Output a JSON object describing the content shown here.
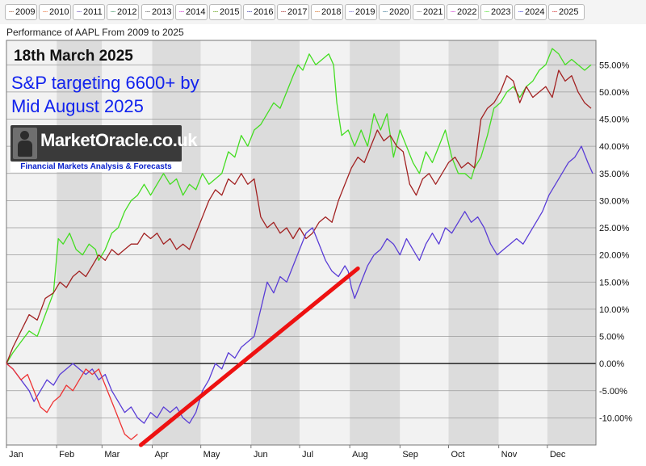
{
  "legend": [
    {
      "label": "2009",
      "color": "#a0522d"
    },
    {
      "label": "2010",
      "color": "#e87038"
    },
    {
      "label": "2011",
      "color": "#5a3db0"
    },
    {
      "label": "2012",
      "color": "#2e8b57"
    },
    {
      "label": "2013",
      "color": "#555555"
    },
    {
      "label": "2014",
      "color": "#cc22cc"
    },
    {
      "label": "2015",
      "color": "#559900"
    },
    {
      "label": "2016",
      "color": "#22229a"
    },
    {
      "label": "2017",
      "color": "#a22222"
    },
    {
      "label": "2018",
      "color": "#d2691e"
    },
    {
      "label": "2019",
      "color": "#6a5acd"
    },
    {
      "label": "2020",
      "color": "#2f6f8f"
    },
    {
      "label": "2021",
      "color": "#666666"
    },
    {
      "label": "2022",
      "color": "#cc33cc"
    },
    {
      "label": "2023",
      "color": "#44dd22"
    },
    {
      "label": "2024",
      "color": "#2a2ad0"
    },
    {
      "label": "2025",
      "color": "#cc2222"
    }
  ],
  "annotations": {
    "date": "18th March 2025",
    "target_line1": "S&P targeting 6600+ by",
    "target_line2": "Mid August 2025"
  },
  "logo": {
    "brand": "MarketOracle.co.uk",
    "tagline": "Financial Markets Analysis & Forecasts"
  },
  "chart_data": {
    "type": "line",
    "title": "Performance of AAPL From 2009 to 2025",
    "xlabel": "",
    "ylabel": "",
    "x_unit": "day of year",
    "x_range": [
      1,
      365
    ],
    "months": [
      "Jan",
      "Feb",
      "Mar",
      "Apr",
      "May",
      "Jun",
      "Jul",
      "Aug",
      "Sep",
      "Oct",
      "Nov",
      "Dec"
    ],
    "y_ticks": [
      "55.00%",
      "50.00%",
      "45.00%",
      "40.00%",
      "35.00%",
      "30.00%",
      "25.00%",
      "20.00%",
      "15.00%",
      "10.00%",
      "5.00%",
      "0.00%",
      "-5.00%",
      "-10.00%"
    ],
    "y_tick_values": [
      55,
      50,
      45,
      40,
      35,
      30,
      25,
      20,
      15,
      10,
      5,
      0,
      -5,
      -10
    ],
    "ylim": [
      -15,
      59.5
    ],
    "grid": "alternating month bands with horizontal gridlines",
    "series": [
      {
        "name": "2023",
        "color": "#44dd22",
        "points": [
          [
            1,
            0
          ],
          [
            5,
            2
          ],
          [
            10,
            4
          ],
          [
            15,
            6
          ],
          [
            20,
            5
          ],
          [
            25,
            9
          ],
          [
            30,
            13
          ],
          [
            33,
            23
          ],
          [
            36,
            22
          ],
          [
            40,
            24
          ],
          [
            44,
            21
          ],
          [
            48,
            20
          ],
          [
            52,
            22
          ],
          [
            56,
            21
          ],
          [
            58,
            19
          ],
          [
            62,
            21
          ],
          [
            66,
            24
          ],
          [
            70,
            25
          ],
          [
            74,
            28
          ],
          [
            78,
            30
          ],
          [
            82,
            31
          ],
          [
            86,
            33
          ],
          [
            90,
            31
          ],
          [
            94,
            33
          ],
          [
            98,
            35
          ],
          [
            102,
            33
          ],
          [
            106,
            34
          ],
          [
            110,
            31
          ],
          [
            114,
            33
          ],
          [
            118,
            32
          ],
          [
            122,
            35
          ],
          [
            126,
            33
          ],
          [
            130,
            34
          ],
          [
            134,
            35
          ],
          [
            138,
            39
          ],
          [
            142,
            38
          ],
          [
            146,
            42
          ],
          [
            150,
            40
          ],
          [
            154,
            43
          ],
          [
            158,
            44
          ],
          [
            162,
            46
          ],
          [
            166,
            48
          ],
          [
            170,
            47
          ],
          [
            174,
            50
          ],
          [
            178,
            53
          ],
          [
            181,
            55
          ],
          [
            184,
            54
          ],
          [
            188,
            57
          ],
          [
            192,
            55
          ],
          [
            196,
            56
          ],
          [
            200,
            57
          ],
          [
            203,
            55
          ],
          [
            205,
            48
          ],
          [
            208,
            42
          ],
          [
            212,
            43
          ],
          [
            216,
            40
          ],
          [
            220,
            43
          ],
          [
            224,
            40
          ],
          [
            228,
            46
          ],
          [
            232,
            43
          ],
          [
            236,
            46
          ],
          [
            240,
            38
          ],
          [
            244,
            43
          ],
          [
            248,
            40
          ],
          [
            252,
            37
          ],
          [
            256,
            35
          ],
          [
            260,
            39
          ],
          [
            264,
            37
          ],
          [
            268,
            40
          ],
          [
            272,
            43
          ],
          [
            276,
            38
          ],
          [
            280,
            35
          ],
          [
            284,
            35
          ],
          [
            288,
            34
          ],
          [
            290,
            36
          ],
          [
            294,
            38
          ],
          [
            298,
            42
          ],
          [
            302,
            47
          ],
          [
            306,
            48
          ],
          [
            310,
            50
          ],
          [
            314,
            51
          ],
          [
            318,
            49
          ],
          [
            322,
            51
          ],
          [
            326,
            52
          ],
          [
            330,
            54
          ],
          [
            334,
            55
          ],
          [
            338,
            58
          ],
          [
            342,
            57
          ],
          [
            346,
            55
          ],
          [
            350,
            56
          ],
          [
            354,
            55
          ],
          [
            358,
            54
          ],
          [
            362,
            55
          ]
        ]
      },
      {
        "name": "2017",
        "color": "#a22222",
        "points": [
          [
            1,
            0
          ],
          [
            5,
            3
          ],
          [
            10,
            6
          ],
          [
            15,
            9
          ],
          [
            20,
            8
          ],
          [
            25,
            12
          ],
          [
            30,
            13
          ],
          [
            34,
            15
          ],
          [
            38,
            14
          ],
          [
            42,
            16
          ],
          [
            46,
            17
          ],
          [
            50,
            16
          ],
          [
            54,
            18
          ],
          [
            58,
            20
          ],
          [
            62,
            19
          ],
          [
            66,
            21
          ],
          [
            70,
            20
          ],
          [
            74,
            21
          ],
          [
            78,
            22
          ],
          [
            82,
            22
          ],
          [
            86,
            24
          ],
          [
            90,
            23
          ],
          [
            94,
            24
          ],
          [
            98,
            22
          ],
          [
            102,
            23
          ],
          [
            106,
            21
          ],
          [
            110,
            22
          ],
          [
            114,
            21
          ],
          [
            118,
            24
          ],
          [
            122,
            27
          ],
          [
            126,
            30
          ],
          [
            130,
            32
          ],
          [
            134,
            31
          ],
          [
            138,
            34
          ],
          [
            142,
            33
          ],
          [
            146,
            35
          ],
          [
            150,
            33
          ],
          [
            154,
            34
          ],
          [
            158,
            27
          ],
          [
            162,
            25
          ],
          [
            166,
            26
          ],
          [
            170,
            24
          ],
          [
            174,
            25
          ],
          [
            178,
            23
          ],
          [
            182,
            25
          ],
          [
            186,
            23
          ],
          [
            190,
            24
          ],
          [
            194,
            26
          ],
          [
            198,
            27
          ],
          [
            202,
            26
          ],
          [
            206,
            30
          ],
          [
            210,
            33
          ],
          [
            214,
            36
          ],
          [
            218,
            38
          ],
          [
            222,
            37
          ],
          [
            226,
            40
          ],
          [
            230,
            43
          ],
          [
            234,
            41
          ],
          [
            238,
            42
          ],
          [
            242,
            40
          ],
          [
            246,
            39
          ],
          [
            250,
            33
          ],
          [
            254,
            31
          ],
          [
            258,
            34
          ],
          [
            262,
            35
          ],
          [
            266,
            33
          ],
          [
            270,
            35
          ],
          [
            274,
            37
          ],
          [
            278,
            38
          ],
          [
            282,
            36
          ],
          [
            286,
            37
          ],
          [
            290,
            36
          ],
          [
            294,
            45
          ],
          [
            298,
            47
          ],
          [
            302,
            48
          ],
          [
            306,
            50
          ],
          [
            310,
            53
          ],
          [
            314,
            52
          ],
          [
            318,
            48
          ],
          [
            322,
            51
          ],
          [
            326,
            49
          ],
          [
            330,
            50
          ],
          [
            334,
            51
          ],
          [
            338,
            49
          ],
          [
            342,
            54
          ],
          [
            346,
            52
          ],
          [
            350,
            53
          ],
          [
            354,
            50
          ],
          [
            358,
            48
          ],
          [
            362,
            47
          ]
        ]
      },
      {
        "name": "2024",
        "color": "#5a3dd6",
        "points": [
          [
            1,
            0
          ],
          [
            5,
            -1
          ],
          [
            10,
            -3
          ],
          [
            15,
            -5
          ],
          [
            18,
            -7
          ],
          [
            22,
            -5
          ],
          [
            26,
            -3
          ],
          [
            30,
            -4
          ],
          [
            34,
            -2
          ],
          [
            38,
            -1
          ],
          [
            42,
            0
          ],
          [
            46,
            -1
          ],
          [
            50,
            -2
          ],
          [
            54,
            -1
          ],
          [
            58,
            -3
          ],
          [
            62,
            -2
          ],
          [
            66,
            -5
          ],
          [
            70,
            -7
          ],
          [
            74,
            -9
          ],
          [
            78,
            -8
          ],
          [
            82,
            -10
          ],
          [
            86,
            -11
          ],
          [
            90,
            -9
          ],
          [
            94,
            -10
          ],
          [
            98,
            -8
          ],
          [
            102,
            -9
          ],
          [
            106,
            -8
          ],
          [
            110,
            -10
          ],
          [
            114,
            -11
          ],
          [
            118,
            -9
          ],
          [
            122,
            -5
          ],
          [
            126,
            -3
          ],
          [
            130,
            0
          ],
          [
            134,
            -1
          ],
          [
            138,
            2
          ],
          [
            142,
            1
          ],
          [
            146,
            3
          ],
          [
            150,
            4
          ],
          [
            154,
            5
          ],
          [
            158,
            10
          ],
          [
            162,
            15
          ],
          [
            166,
            13
          ],
          [
            170,
            16
          ],
          [
            174,
            15
          ],
          [
            178,
            18
          ],
          [
            182,
            21
          ],
          [
            186,
            24
          ],
          [
            190,
            25
          ],
          [
            194,
            22
          ],
          [
            198,
            19
          ],
          [
            202,
            17
          ],
          [
            206,
            16
          ],
          [
            210,
            18
          ],
          [
            212,
            17
          ],
          [
            214,
            14
          ],
          [
            216,
            12
          ],
          [
            220,
            15
          ],
          [
            224,
            18
          ],
          [
            228,
            20
          ],
          [
            232,
            21
          ],
          [
            236,
            23
          ],
          [
            240,
            22
          ],
          [
            244,
            20
          ],
          [
            248,
            23
          ],
          [
            252,
            21
          ],
          [
            256,
            19
          ],
          [
            260,
            22
          ],
          [
            264,
            24
          ],
          [
            268,
            22
          ],
          [
            272,
            25
          ],
          [
            276,
            24
          ],
          [
            280,
            26
          ],
          [
            284,
            28
          ],
          [
            288,
            26
          ],
          [
            292,
            27
          ],
          [
            296,
            25
          ],
          [
            300,
            22
          ],
          [
            304,
            20
          ],
          [
            308,
            21
          ],
          [
            312,
            22
          ],
          [
            316,
            23
          ],
          [
            320,
            22
          ],
          [
            324,
            24
          ],
          [
            328,
            26
          ],
          [
            332,
            28
          ],
          [
            336,
            31
          ],
          [
            340,
            33
          ],
          [
            344,
            35
          ],
          [
            348,
            37
          ],
          [
            352,
            38
          ],
          [
            356,
            40
          ],
          [
            360,
            37
          ],
          [
            363,
            35
          ]
        ]
      },
      {
        "name": "2025",
        "color": "#ee3333",
        "points": [
          [
            1,
            0
          ],
          [
            5,
            -1
          ],
          [
            10,
            -3
          ],
          [
            14,
            -2
          ],
          [
            18,
            -5
          ],
          [
            22,
            -8
          ],
          [
            26,
            -9
          ],
          [
            30,
            -7
          ],
          [
            34,
            -6
          ],
          [
            38,
            -4
          ],
          [
            42,
            -5
          ],
          [
            46,
            -3
          ],
          [
            50,
            -1
          ],
          [
            54,
            -2
          ],
          [
            58,
            -1
          ],
          [
            62,
            -4
          ],
          [
            66,
            -7
          ],
          [
            70,
            -10
          ],
          [
            74,
            -13
          ],
          [
            78,
            -14
          ],
          [
            82,
            -13
          ]
        ]
      }
    ],
    "annotation_line": {
      "color": "#ee1111",
      "from": [
        84,
        -15
      ],
      "to": [
        218,
        17.5
      ]
    }
  }
}
